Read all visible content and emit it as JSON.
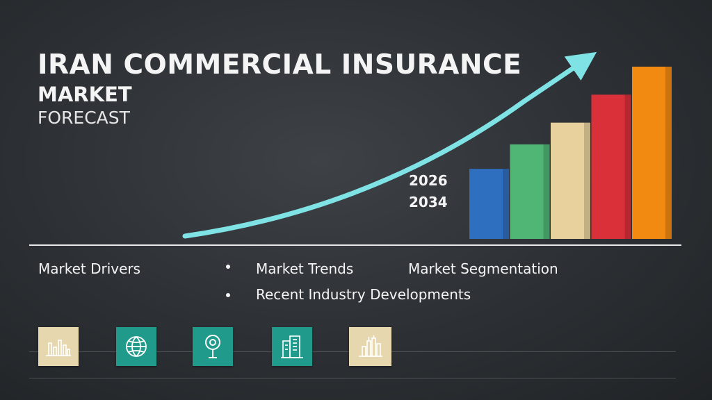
{
  "title": {
    "line1": "IRAN COMMERCIAL INSURANCE",
    "line2": "MARKET",
    "line3": "FORECAST"
  },
  "years": {
    "start": "2026",
    "end": "2034"
  },
  "chart_data": {
    "type": "bar",
    "categories": [
      "",
      "",
      "",
      "",
      ""
    ],
    "values": [
      100,
      135,
      166,
      206,
      246
    ],
    "colors": [
      "#2f6fbf",
      "#4fb676",
      "#e8d19c",
      "#d9303a",
      "#f28a12"
    ],
    "trend_arrow": "up-right",
    "arrow_color": "#7fe3e6"
  },
  "topics": {
    "market_drivers": "Market Drivers",
    "market_trends": "Market Trends",
    "market_segmentation": "Market Segmentation",
    "recent_developments": "Recent Industry Developments"
  },
  "icons": [
    {
      "name": "bar-chart-icon",
      "color": "#e6d7ae"
    },
    {
      "name": "globe-icon",
      "color": "#1f9a8b"
    },
    {
      "name": "location-pin-icon",
      "color": "#1f9a8b"
    },
    {
      "name": "building-icon",
      "color": "#1f9a8b"
    },
    {
      "name": "factory-icon",
      "color": "#e6d7ae"
    }
  ]
}
